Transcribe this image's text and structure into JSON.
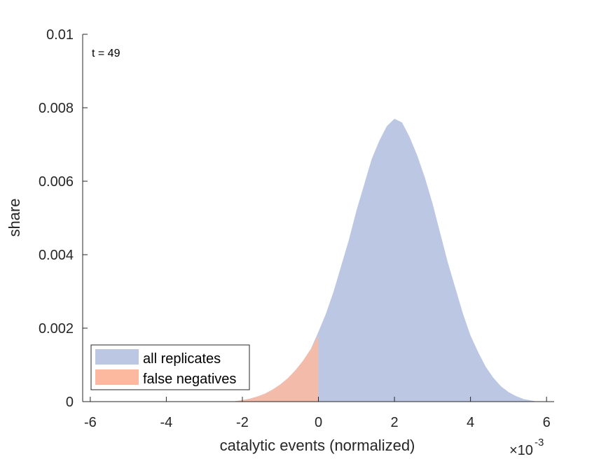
{
  "chart_data": {
    "type": "area",
    "title": "",
    "xlabel": "catalytic events (normalized)",
    "ylabel": "share",
    "x_multiplier_label": "×10",
    "x_multiplier_exponent": "-3",
    "xlim": [
      -6.2,
      6.2
    ],
    "ylim": [
      0,
      0.01
    ],
    "xticks": [
      -6,
      -4,
      -2,
      0,
      2,
      4,
      6
    ],
    "xtick_labels": [
      "-6",
      "-4",
      "-2",
      "0",
      "2",
      "4",
      "6"
    ],
    "yticks": [
      0,
      0.002,
      0.004,
      0.006,
      0.008,
      0.01
    ],
    "ytick_labels": [
      "0",
      "0.002",
      "0.004",
      "0.006",
      "0.008",
      "0.01"
    ],
    "grid": false,
    "legend_position": "bottom-left",
    "annotation": "t = 49",
    "series": [
      {
        "name": "all replicates",
        "color": "#BCC8E3",
        "x": [
          -2.2,
          -2.0,
          -1.8,
          -1.6,
          -1.4,
          -1.2,
          -1.0,
          -0.8,
          -0.6,
          -0.4,
          -0.2,
          0.0,
          0.2,
          0.4,
          0.6,
          0.8,
          1.0,
          1.2,
          1.4,
          1.6,
          1.8,
          2.0,
          2.2,
          2.4,
          2.6,
          2.8,
          3.0,
          3.2,
          3.4,
          3.6,
          3.8,
          4.0,
          4.2,
          4.4,
          4.6,
          4.8,
          5.0,
          5.2,
          5.4,
          5.6,
          5.7
        ],
        "y": [
          1e-05,
          4e-05,
          8e-05,
          0.00014,
          0.00022,
          0.00033,
          0.00047,
          0.00064,
          0.00086,
          0.00112,
          0.00143,
          0.0019,
          0.0024,
          0.003,
          0.0037,
          0.0044,
          0.0052,
          0.0059,
          0.0066,
          0.0071,
          0.0075,
          0.0077,
          0.0076,
          0.0072,
          0.0067,
          0.0061,
          0.0054,
          0.0046,
          0.0038,
          0.0031,
          0.0024,
          0.0018,
          0.00135,
          0.00095,
          0.00065,
          0.00042,
          0.00026,
          0.00015,
          7e-05,
          3e-05,
          1e-05
        ]
      },
      {
        "name": "false negatives",
        "color": "#FCB9A0",
        "x": [
          -2.2,
          -2.0,
          -1.8,
          -1.6,
          -1.4,
          -1.2,
          -1.0,
          -0.8,
          -0.6,
          -0.4,
          -0.2,
          0.0
        ],
        "y": [
          1e-05,
          4e-05,
          8e-05,
          0.00014,
          0.00022,
          0.00033,
          0.00047,
          0.00064,
          0.00086,
          0.00112,
          0.00143,
          0.0018
        ]
      }
    ]
  }
}
